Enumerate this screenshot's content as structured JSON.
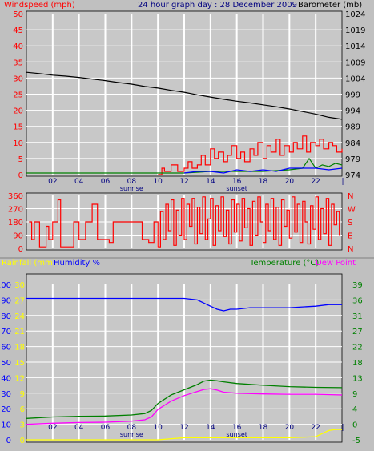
{
  "header": {
    "left_label": "Windspeed (mph)",
    "title": "24 hour graph day : 28 December 2009",
    "right_label": "Barometer (mb)"
  },
  "colors": {
    "background": "#c0c0c0",
    "plot_bg": "#c8c8c8",
    "grid": "#ffffff",
    "red": "#ff0000",
    "blue": "#0000ff",
    "navy": "#000080",
    "green": "#008000",
    "magenta": "#ff00ff",
    "yellow": "#ffff00",
    "black": "#000000"
  },
  "chart_data": [
    {
      "type": "line",
      "panel": "wind-barometer",
      "ylabel_left": "Windspeed (mph)",
      "ylabel_right": "Barometer (mb)",
      "x_ticks": [
        "02",
        "04",
        "06",
        "08",
        "10",
        "12",
        "14",
        "16",
        "18",
        "20",
        "22"
      ],
      "x_range": [
        0,
        24
      ],
      "ylim_left": [
        0,
        50
      ],
      "yticks_left": [
        "50",
        "45",
        "40",
        "35",
        "30",
        "25",
        "20",
        "15",
        "10",
        "5",
        "0"
      ],
      "ylim_right": [
        974,
        1024
      ],
      "yticks_right": [
        "1024",
        "1019",
        "1014",
        "1009",
        "1004",
        "999",
        "994",
        "989",
        "984",
        "979",
        "974"
      ],
      "sun_labels": [
        {
          "x": 8,
          "text": "sunrise"
        },
        {
          "x": 16,
          "text": "sunset"
        }
      ],
      "series": [
        {
          "name": "Barometer",
          "axis": "right",
          "color": "#000000",
          "x": [
            0,
            1,
            2,
            3,
            4,
            5,
            6,
            7,
            8,
            9,
            10,
            11,
            12,
            13,
            14,
            15,
            16,
            17,
            18,
            19,
            20,
            21,
            22,
            23,
            24
          ],
          "y": [
            1005.8,
            1005.4,
            1004.9,
            1004.6,
            1004.2,
            1003.7,
            1003.2,
            1002.6,
            1002.1,
            1001.4,
            1000.9,
            1000.2,
            999.6,
            998.8,
            998.1,
            997.4,
            996.8,
            996.3,
            995.7,
            995.1,
            994.4,
            993.6,
            992.8,
            991.8,
            991.2
          ]
        },
        {
          "name": "Windspeed",
          "axis": "left",
          "color": "#ff0000",
          "x": [
            10.0,
            10.3,
            10.5,
            11.0,
            11.5,
            12.0,
            12.3,
            12.6,
            13.0,
            13.3,
            13.6,
            14.0,
            14.3,
            14.6,
            15.0,
            15.3,
            15.6,
            16.0,
            16.3,
            16.6,
            17.0,
            17.3,
            17.6,
            18.0,
            18.3,
            18.6,
            19.0,
            19.3,
            19.6,
            20.0,
            20.3,
            20.6,
            21.0,
            21.3,
            21.6,
            22.0,
            22.3,
            22.6,
            23.0,
            23.3,
            23.6,
            24.0
          ],
          "y": [
            0,
            2,
            1,
            3,
            1,
            2,
            4,
            2,
            3,
            6,
            3,
            8,
            5,
            7,
            4,
            6,
            9,
            5,
            7,
            4,
            8,
            6,
            10,
            5,
            9,
            7,
            11,
            6,
            9,
            7,
            10,
            8,
            12,
            7,
            10,
            9,
            11,
            8,
            10,
            9,
            7,
            8
          ]
        },
        {
          "name": "Gust",
          "axis": "left",
          "color": "#008000",
          "x": [
            0,
            10,
            12,
            14,
            16,
            18,
            20,
            21,
            21.5,
            22,
            22.5,
            23,
            23.5,
            24
          ],
          "y": [
            0.5,
            0.5,
            0.5,
            1,
            1,
            1,
            1.5,
            2,
            5,
            2,
            3,
            2.5,
            3.5,
            3
          ]
        },
        {
          "name": "Average",
          "axis": "left",
          "color": "#0000ff",
          "x": [
            12,
            13,
            14,
            15,
            16,
            17,
            18,
            19,
            20,
            21,
            22,
            23,
            24
          ],
          "y": [
            0.5,
            1,
            1,
            0.5,
            1.5,
            1,
            1.5,
            1,
            2,
            2,
            2,
            1.5,
            2
          ]
        }
      ]
    },
    {
      "type": "line",
      "panel": "wind-direction",
      "ylim_left": [
        0,
        360
      ],
      "yticks_left": [
        "360",
        "270",
        "180",
        "90",
        "0"
      ],
      "yticks_right": [
        "N",
        "W",
        "S",
        "E",
        "N"
      ],
      "series": [
        {
          "name": "Direction",
          "color": "#ff0000",
          "x": [
            0.2,
            0.4,
            0.6,
            1.0,
            1.5,
            1.7,
            2.0,
            2.4,
            2.6,
            3.2,
            3.6,
            4.0,
            4.5,
            5.0,
            5.4,
            5.8,
            6.3,
            6.6,
            7.0,
            7.5,
            7.9,
            8.3,
            8.8,
            9.3,
            9.7,
            10.0,
            10.2,
            10.4,
            10.6,
            10.8,
            11.0,
            11.2,
            11.4,
            11.6,
            11.8,
            12.0,
            12.2,
            12.4,
            12.6,
            12.8,
            13.0,
            13.2,
            13.4,
            13.6,
            13.8,
            14.0,
            14.2,
            14.4,
            14.6,
            14.8,
            15.0,
            15.2,
            15.4,
            15.6,
            15.8,
            16.0,
            16.2,
            16.4,
            16.6,
            16.8,
            17.0,
            17.2,
            17.4,
            17.6,
            17.8,
            18.0,
            18.2,
            18.4,
            18.6,
            18.8,
            19.0,
            19.2,
            19.4,
            19.6,
            19.8,
            20.0,
            20.2,
            20.4,
            20.6,
            20.8,
            21.0,
            21.2,
            21.4,
            21.6,
            21.8,
            22.0,
            22.2,
            22.4,
            22.6,
            22.8,
            23.0,
            23.2,
            23.4,
            23.6,
            23.8
          ],
          "y": [
            180,
            60,
            180,
            10,
            150,
            60,
            180,
            330,
            10,
            10,
            180,
            60,
            180,
            300,
            60,
            60,
            40,
            180,
            180,
            180,
            180,
            180,
            60,
            40,
            180,
            10,
            250,
            60,
            300,
            120,
            330,
            20,
            260,
            90,
            340,
            60,
            300,
            150,
            340,
            30,
            280,
            100,
            350,
            60,
            200,
            340,
            20,
            290,
            120,
            350,
            80,
            260,
            30,
            330,
            110,
            300,
            50,
            340,
            140,
            270,
            20,
            320,
            90,
            350,
            180,
            40,
            300,
            120,
            340,
            60,
            280,
            20,
            330,
            150,
            260,
            70,
            350,
            110,
            300,
            40,
            320,
            180,
            30,
            290,
            130,
            350,
            60,
            270,
            100,
            340,
            20,
            300,
            160,
            250,
            90
          ]
        }
      ]
    },
    {
      "type": "line",
      "panel": "temperature-humidity",
      "labels": {
        "rainfall": "Rainfall (mm)",
        "humidity": "Humidity %",
        "temperature": "Temperature (°C)",
        "dew_point": "Dew Point"
      },
      "yticks_humidity": [
        "100",
        "90",
        "80",
        "70",
        "60",
        "50",
        "40",
        "30",
        "20",
        "10",
        "0"
      ],
      "yticks_rainfall": [
        "30",
        "27",
        "24",
        "21",
        "18",
        "15",
        "12",
        "9",
        "6",
        "3",
        "0"
      ],
      "yticks_temperature": [
        "39",
        "36",
        "31",
        "27",
        "22",
        "18",
        "13",
        "9",
        "4",
        "0",
        "-5"
      ],
      "ylim_humidity": [
        0,
        100
      ],
      "ylim_rainfall": [
        0,
        30
      ],
      "ylim_temperature": [
        -5,
        40
      ],
      "series": [
        {
          "name": "Humidity",
          "color": "#0000ff",
          "axis": "humidity",
          "x": [
            0,
            2,
            4,
            6,
            8,
            10,
            11,
            12,
            13,
            13.5,
            14,
            14.5,
            15,
            15.5,
            16,
            17,
            18,
            20,
            22,
            23,
            24
          ],
          "y": [
            91,
            91,
            91,
            91,
            91,
            91,
            91,
            91,
            90,
            88,
            86,
            84,
            83,
            84,
            84,
            85,
            85,
            85,
            86,
            87,
            87
          ]
        },
        {
          "name": "Temperature",
          "color": "#008000",
          "axis": "temperature",
          "x": [
            0,
            2,
            4,
            6,
            8,
            9,
            9.5,
            10,
            11,
            12,
            13,
            13.5,
            14,
            14.5,
            15,
            16,
            18,
            20,
            22,
            24
          ],
          "y": [
            1.2,
            1.6,
            1.8,
            1.9,
            2.2,
            2.6,
            3.5,
            5.5,
            8.0,
            9.5,
            11.0,
            12.0,
            12.3,
            12.1,
            11.8,
            11.3,
            10.8,
            10.4,
            10.2,
            10.1
          ]
        },
        {
          "name": "Dew Point",
          "color": "#ff00ff",
          "axis": "temperature",
          "x": [
            0,
            2,
            4,
            6,
            8,
            9,
            9.5,
            10,
            11,
            12,
            13,
            13.5,
            14,
            14.5,
            15,
            16,
            18,
            20,
            22,
            24
          ],
          "y": [
            -0.5,
            -0.2,
            0,
            0.1,
            0.4,
            0.8,
            1.6,
            3.8,
            6.2,
            7.8,
            9.0,
            9.6,
            9.8,
            9.4,
            8.8,
            8.5,
            8.3,
            8.2,
            8.2,
            8.0
          ]
        },
        {
          "name": "Rainfall",
          "color": "#ffff00",
          "axis": "rainfall",
          "x": [
            0,
            10,
            12,
            16,
            20,
            22,
            22.5,
            23,
            23.5,
            24
          ],
          "y": [
            0,
            0,
            0.4,
            0.4,
            0.4,
            0.6,
            1.2,
            1.8,
            2.0,
            2.0
          ]
        }
      ],
      "sun_labels": [
        {
          "x": 8,
          "text": "sunrise"
        },
        {
          "x": 16,
          "text": "sunset"
        }
      ]
    }
  ]
}
